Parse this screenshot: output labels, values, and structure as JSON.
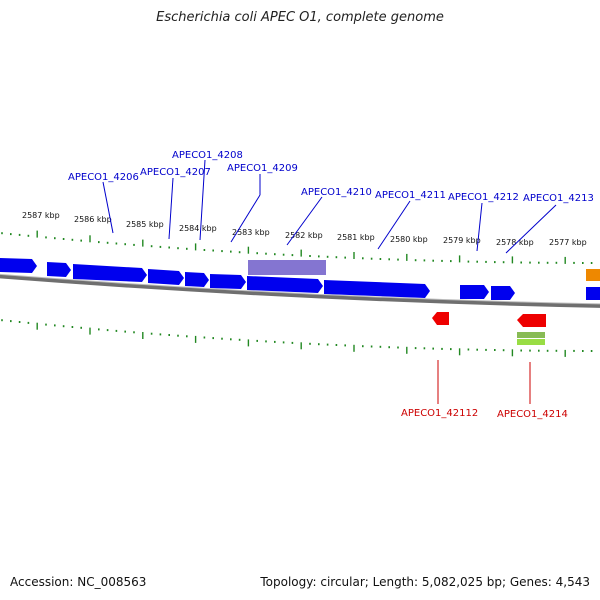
{
  "title": "Escherichia coli APEC O1, complete genome",
  "footer": {
    "accession": "Accession: NC_008563",
    "summary": "Topology: circular; Length: 5,082,025 bp; Genes: 4,543"
  },
  "ticks": [
    "2587 kbp",
    "2586 kbp",
    "2585 kbp",
    "2584 kbp",
    "2583 kbp",
    "2582 kbp",
    "2581 kbp",
    "2580 kbp",
    "2579 kbp",
    "2578 kbp",
    "2577 kbp"
  ],
  "forward_genes": [
    "APECO1_4206",
    "APECO1_4207",
    "APECO1_4208",
    "APECO1_4209",
    "APECO1_4210",
    "APECO1_4211",
    "APECO1_4212",
    "APECO1_4213"
  ],
  "reverse_genes": [
    "APECO1_42112",
    "APECO1_4214"
  ],
  "colors": {
    "forward": "#0000ee",
    "reverse": "#ee0000",
    "highlight": "#7766cc",
    "backbone": "#808080",
    "tick": "#228822",
    "orange": "#ee8800",
    "lime": "#99dd44"
  }
}
